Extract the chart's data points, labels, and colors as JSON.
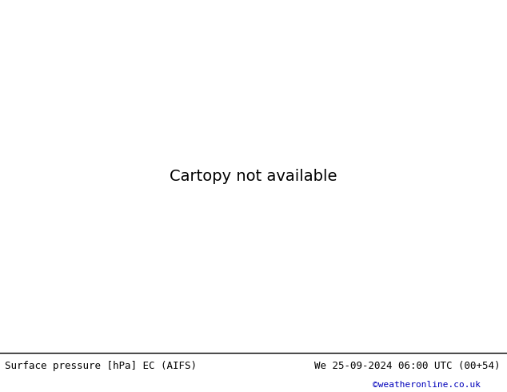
{
  "title_left": "Surface pressure [hPa] EC (AIFS)",
  "title_right": "We 25-09-2024 06:00 UTC (00+54)",
  "credit": "©weatheronline.co.uk",
  "land_color": "#aee882",
  "sea_color": "#d8d8d8",
  "gray_color": "#c8c8c8",
  "border_color": "#808080",
  "coast_color": "#000000",
  "red": "#cc0000",
  "blue": "#0055cc",
  "black": "#000000",
  "bottom_bg": "#ffffff",
  "text_color": "#000000",
  "credit_color": "#0000bb",
  "font_size_bar": 9,
  "font_size_credit": 8,
  "lw_isobar": 1.0,
  "lw_coast": 0.6,
  "extent": [
    22,
    108,
    0,
    60
  ],
  "figsize": [
    6.34,
    4.9
  ],
  "dpi": 100
}
